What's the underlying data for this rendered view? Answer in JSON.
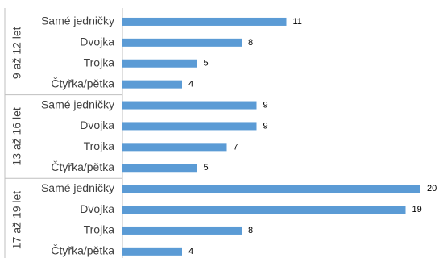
{
  "chart_data": {
    "type": "bar",
    "orientation": "horizontal",
    "grid": false,
    "legend": "none",
    "bar_color": "#5b9bd5",
    "axis_color": "#bfbfbf",
    "xlim": [
      0,
      21
    ],
    "groups": [
      {
        "label": "9 až 12 let",
        "categories": [
          "Samé jedničky",
          "Dvojka",
          "Trojka",
          "Čtyřka/pětka"
        ],
        "values": [
          11,
          8,
          5,
          4
        ]
      },
      {
        "label": "13 až 16 let",
        "categories": [
          "Samé jedničky",
          "Dvojka",
          "Trojka",
          "Čtyřka/pětka"
        ],
        "values": [
          9,
          9,
          7,
          5
        ]
      },
      {
        "label": "17 až 19 let",
        "categories": [
          "Samé jedničky",
          "Dvojka",
          "Trojka",
          "Čtyřka/pětka"
        ],
        "values": [
          20,
          19,
          8,
          4
        ]
      }
    ]
  }
}
